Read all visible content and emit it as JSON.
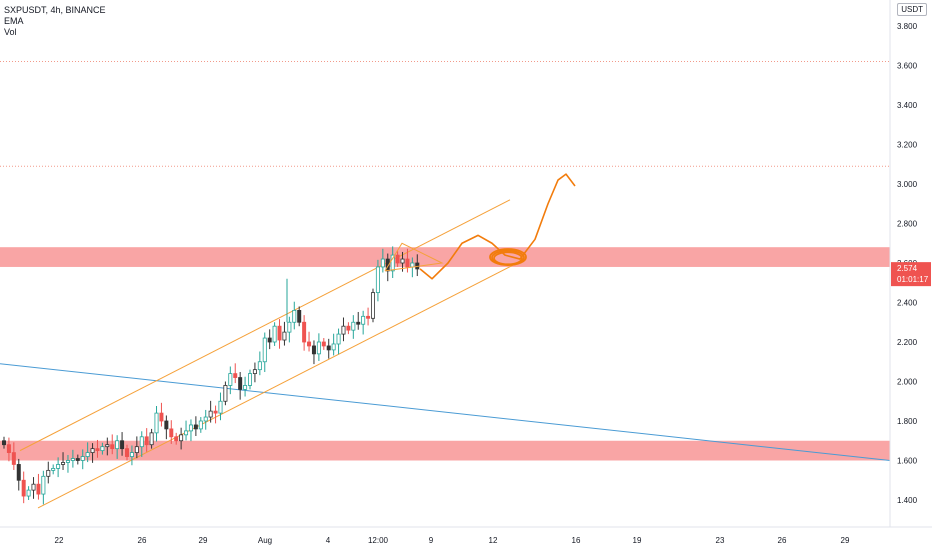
{
  "legend": {
    "symbol_line": "SXPUSDT, 4h, BINANCE",
    "indicator_1": "EMA",
    "indicator_2": "Vol"
  },
  "price_axis": {
    "unit": "USDT",
    "ticks": [
      "3.800",
      "3.600",
      "3.400",
      "3.200",
      "3.000",
      "2.800",
      "2.600",
      "2.400",
      "2.200",
      "2.000",
      "1.800",
      "1.600",
      "1.400"
    ],
    "last_price": "2.574",
    "countdown": "01:01:17"
  },
  "time_axis": {
    "ticks": [
      "22",
      "26",
      "29",
      "Aug",
      "4",
      "12:00",
      "9",
      "12",
      "16",
      "19",
      "23",
      "26",
      "29"
    ]
  },
  "colors": {
    "zone_fill": "#f9a5a5",
    "channel": "#f5a13a",
    "projection": "#f27c0c",
    "trendline": "#4a9bd4",
    "dotted_level": "#f29a8a",
    "bull_candle": "#26a69a",
    "bear_candle": "#ef5350",
    "candle_dark": "#333333",
    "price_label_bg": "#ef5350"
  },
  "chart_data": {
    "type": "candlestick",
    "symbol": "SXPUSDT",
    "interval": "4h",
    "exchange": "BINANCE",
    "y_range": [
      1.3,
      3.9
    ],
    "horizontal_levels": [
      3.62,
      3.09
    ],
    "zones": [
      {
        "low": 2.58,
        "high": 2.68
      },
      {
        "low": 1.6,
        "high": 1.7
      }
    ],
    "channel": {
      "lower": [
        {
          "x": "22",
          "y": 1.36
        },
        {
          "x": "12",
          "y": 2.62
        }
      ],
      "upper": [
        {
          "x": "22",
          "y": 1.65
        },
        {
          "x": "12",
          "y": 2.92
        }
      ]
    },
    "trendline": [
      {
        "x": "start",
        "y": 2.09
      },
      {
        "x": "end",
        "y": 1.6
      }
    ],
    "closes": [
      1.68,
      1.64,
      1.58,
      1.5,
      1.42,
      1.45,
      1.48,
      1.43,
      1.52,
      1.55,
      1.56,
      1.58,
      1.59,
      1.6,
      1.61,
      1.6,
      1.62,
      1.64,
      1.66,
      1.65,
      1.67,
      1.68,
      1.66,
      1.7,
      1.66,
      1.62,
      1.64,
      1.67,
      1.72,
      1.68,
      1.74,
      1.84,
      1.8,
      1.76,
      1.72,
      1.7,
      1.73,
      1.75,
      1.78,
      1.76,
      1.8,
      1.82,
      1.85,
      1.84,
      1.9,
      1.98,
      2.04,
      2.02,
      1.96,
      1.98,
      2.04,
      2.06,
      2.1,
      2.22,
      2.2,
      2.28,
      2.21,
      2.25,
      2.3,
      2.36,
      2.3,
      2.2,
      2.18,
      2.14,
      2.2,
      2.18,
      2.16,
      2.19,
      2.24,
      2.28,
      2.26,
      2.3,
      2.29,
      2.33,
      2.32,
      2.45,
      2.58,
      2.62,
      2.56,
      2.64,
      2.6,
      2.62,
      2.58,
      2.6,
      2.57
    ],
    "last_price": 2.574
  }
}
